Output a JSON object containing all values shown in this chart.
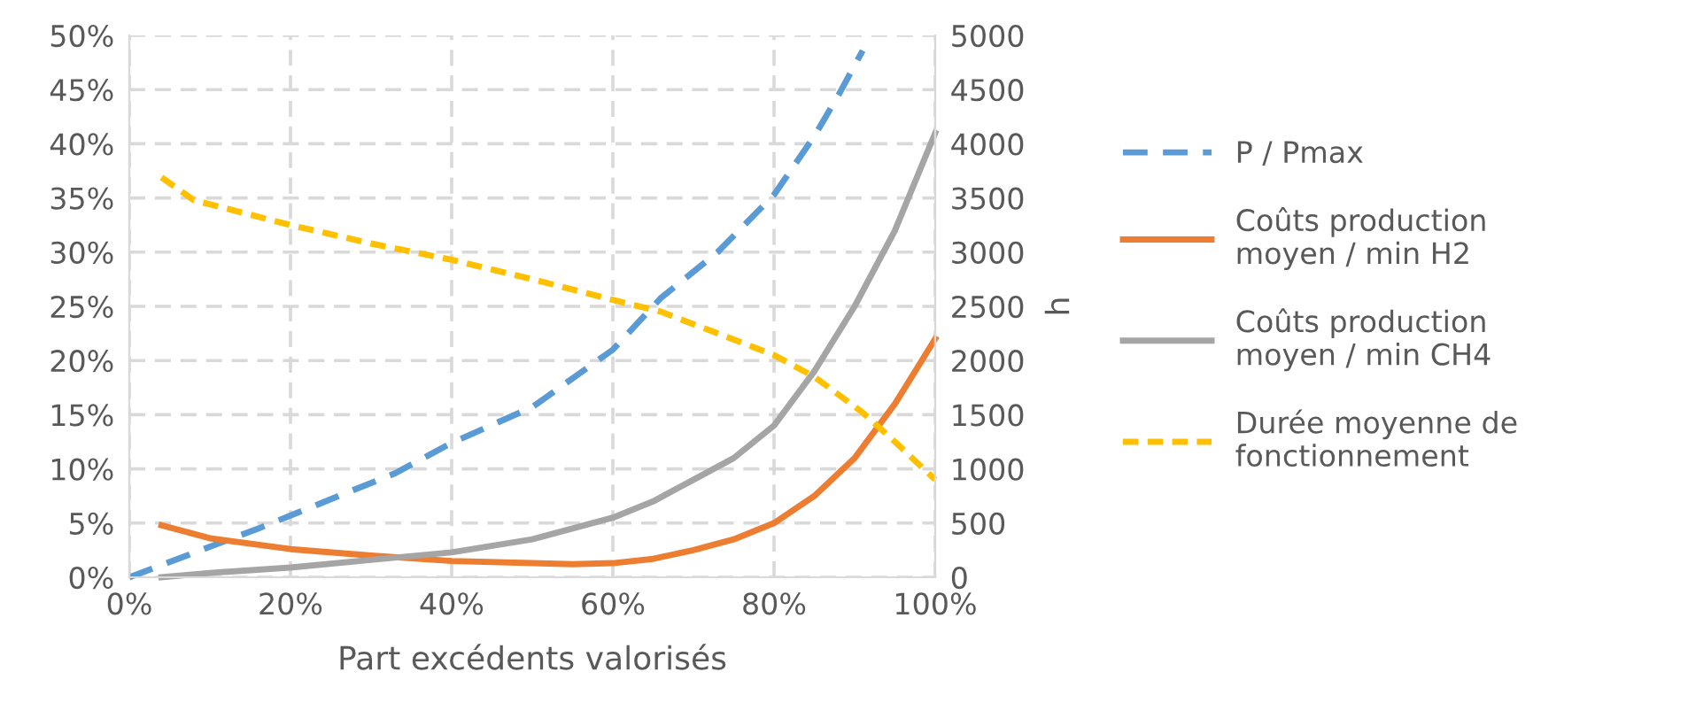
{
  "chart_data": {
    "type": "line",
    "xlabel": "Part excédents valorisés",
    "y2label": "h",
    "xlim": [
      0,
      100
    ],
    "xticks": [
      {
        "value": 0,
        "label": "0%"
      },
      {
        "value": 20,
        "label": "20%"
      },
      {
        "value": 40,
        "label": "40%"
      },
      {
        "value": 60,
        "label": "60%"
      },
      {
        "value": 80,
        "label": "80%"
      },
      {
        "value": 100,
        "label": "100%"
      }
    ],
    "ylim": [
      0,
      50
    ],
    "yticks": [
      {
        "value": 0,
        "label": "0%"
      },
      {
        "value": 5,
        "label": "5%"
      },
      {
        "value": 10,
        "label": "10%"
      },
      {
        "value": 15,
        "label": "15%"
      },
      {
        "value": 20,
        "label": "20%"
      },
      {
        "value": 25,
        "label": "25%"
      },
      {
        "value": 30,
        "label": "30%"
      },
      {
        "value": 35,
        "label": "35%"
      },
      {
        "value": 40,
        "label": "40%"
      },
      {
        "value": 45,
        "label": "45%"
      },
      {
        "value": 50,
        "label": "50%"
      }
    ],
    "y2lim": [
      0,
      5000
    ],
    "y2ticks": [
      0,
      500,
      1000,
      1500,
      2000,
      2500,
      3000,
      3500,
      4000,
      4500,
      5000
    ],
    "grid": true,
    "legend": "right",
    "series": [
      {
        "name": "P / Pmax",
        "color": "#5b9bd5",
        "line_style": "dashed",
        "x": [
          0,
          16,
          33,
          40,
          50,
          60,
          66,
          73,
          80,
          85,
          88,
          91
        ],
        "values": [
          0,
          4.5,
          9.6,
          12.4,
          15.7,
          21,
          25.8,
          30,
          35.3,
          40.7,
          44.5,
          48.6
        ]
      },
      {
        "name": "Coûts production\nmoyen / min H2",
        "color": "#ed7d31",
        "line_style": "solid",
        "x": [
          4,
          10,
          20,
          30,
          40,
          50,
          55,
          60,
          65,
          70,
          75,
          80,
          85,
          90,
          95,
          100
        ],
        "values": [
          4.8,
          3.6,
          2.6,
          2,
          1.5,
          1.3,
          1.2,
          1.3,
          1.7,
          2.5,
          3.5,
          5,
          7.5,
          11,
          16,
          22
        ]
      },
      {
        "name": "Coûts production\nmoyen / min CH4",
        "color": "#a5a5a5",
        "line_style": "solid",
        "x": [
          4,
          10,
          20,
          30,
          40,
          50,
          60,
          65,
          70,
          75,
          80,
          85,
          90,
          95,
          100
        ],
        "values": [
          0,
          0.4,
          0.9,
          1.6,
          2.3,
          3.5,
          5.5,
          7,
          9,
          11,
          14,
          19,
          25,
          32,
          41
        ]
      },
      {
        "name": "Durée moyenne de\nfonctionnement",
        "color": "#ffc000",
        "line_style": "dotted",
        "axis": "y2",
        "x": [
          4,
          8,
          20,
          30,
          40,
          50,
          60,
          66,
          73,
          80,
          85,
          91,
          95,
          100
        ],
        "values": [
          3690,
          3480,
          3250,
          3080,
          2930,
          2750,
          2560,
          2450,
          2250,
          2050,
          1850,
          1520,
          1250,
          900
        ]
      }
    ]
  }
}
